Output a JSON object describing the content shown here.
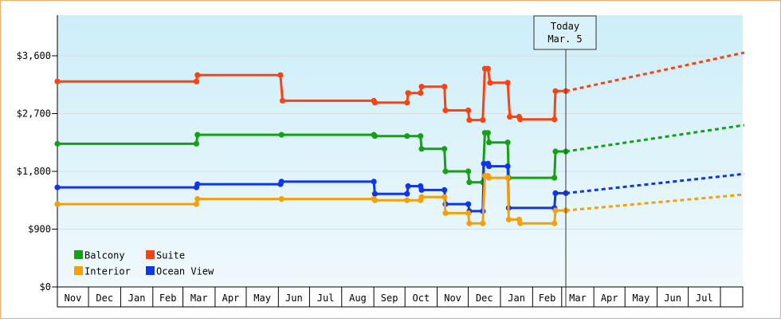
{
  "chart_data": {
    "type": "line",
    "title": "",
    "xlabel": "",
    "ylabel": "",
    "ylim": [
      0,
      3600
    ],
    "y_ticks": [
      {
        "value": 0,
        "label": "$0"
      },
      {
        "value": 900,
        "label": "$900"
      },
      {
        "value": 1800,
        "label": "$1,800"
      },
      {
        "value": 2700,
        "label": "$2,700"
      },
      {
        "value": 3600,
        "label": "$3,600"
      }
    ],
    "x_months": [
      "Nov",
      "Dec",
      "Jan",
      "Feb",
      "Mar",
      "Apr",
      "May",
      "Jun",
      "Jul",
      "Aug",
      "Sep",
      "Oct",
      "Nov",
      "Dec",
      "Jan",
      "Feb",
      "Mar",
      "Apr",
      "May",
      "Jun",
      "Jul"
    ],
    "x_range": [
      "2015-11-01",
      "2017-08-01"
    ],
    "background_gradient": [
      "#cdeef9",
      "#f0f9fc"
    ],
    "today_marker": {
      "line1": "Today",
      "line2": "Mar. 5",
      "date": "2017-03-05"
    },
    "legend": [
      {
        "label": "Balcony",
        "color": "#16a016"
      },
      {
        "label": "Suite",
        "color": "#ff4010"
      },
      {
        "label": "Interior",
        "color": "#f5a00a"
      },
      {
        "label": "Ocean View",
        "color": "#1035ee"
      }
    ],
    "series": [
      {
        "name": "Suite",
        "color": "#ff4010",
        "points": [
          [
            "2015-11-01",
            3200
          ],
          [
            "2016-03-14",
            3200
          ],
          [
            "2016-03-15",
            3300
          ],
          [
            "2016-06-03",
            3300
          ],
          [
            "2016-06-05",
            2900
          ],
          [
            "2016-09-01",
            2900
          ],
          [
            "2016-09-02",
            2870
          ],
          [
            "2016-10-03",
            2870
          ],
          [
            "2016-10-04",
            3020
          ],
          [
            "2016-10-16",
            3020
          ],
          [
            "2016-10-17",
            3120
          ],
          [
            "2016-11-08",
            3120
          ],
          [
            "2016-11-09",
            2750
          ],
          [
            "2016-12-01",
            2750
          ],
          [
            "2016-12-02",
            2600
          ],
          [
            "2016-12-15",
            2600
          ],
          [
            "2016-12-17",
            3400
          ],
          [
            "2016-12-20",
            3400
          ],
          [
            "2016-12-22",
            3180
          ],
          [
            "2017-01-08",
            3180
          ],
          [
            "2017-01-10",
            2650
          ],
          [
            "2017-01-19",
            2650
          ],
          [
            "2017-01-20",
            2610
          ],
          [
            "2017-02-22",
            2610
          ],
          [
            "2017-02-23",
            3050
          ],
          [
            "2017-03-05",
            3050
          ]
        ],
        "projection": [
          [
            "2017-03-05",
            3050
          ],
          [
            "2017-08-24",
            3650
          ]
        ]
      },
      {
        "name": "Balcony",
        "color": "#16a016",
        "points": [
          [
            "2015-11-01",
            2230
          ],
          [
            "2016-03-14",
            2230
          ],
          [
            "2016-03-15",
            2370
          ],
          [
            "2016-06-04",
            2370
          ],
          [
            "2016-09-01",
            2370
          ],
          [
            "2016-09-02",
            2350
          ],
          [
            "2016-10-03",
            2350
          ],
          [
            "2016-10-16",
            2350
          ],
          [
            "2016-10-17",
            2150
          ],
          [
            "2016-11-08",
            2150
          ],
          [
            "2016-11-09",
            1800
          ],
          [
            "2016-12-01",
            1800
          ],
          [
            "2016-12-02",
            1630
          ],
          [
            "2016-12-15",
            1630
          ],
          [
            "2016-12-17",
            2400
          ],
          [
            "2016-12-20",
            2400
          ],
          [
            "2016-12-21",
            2250
          ],
          [
            "2017-01-08",
            2250
          ],
          [
            "2017-01-09",
            1700
          ],
          [
            "2017-02-22",
            1700
          ],
          [
            "2017-02-23",
            2110
          ],
          [
            "2017-03-05",
            2110
          ]
        ],
        "projection": [
          [
            "2017-03-05",
            2110
          ],
          [
            "2017-08-24",
            2520
          ]
        ]
      },
      {
        "name": "Ocean View",
        "color": "#1035ee",
        "points": [
          [
            "2015-11-01",
            1550
          ],
          [
            "2016-03-14",
            1550
          ],
          [
            "2016-03-15",
            1600
          ],
          [
            "2016-06-03",
            1600
          ],
          [
            "2016-06-04",
            1640
          ],
          [
            "2016-09-01",
            1640
          ],
          [
            "2016-09-02",
            1450
          ],
          [
            "2016-10-03",
            1450
          ],
          [
            "2016-10-04",
            1570
          ],
          [
            "2016-10-16",
            1570
          ],
          [
            "2016-10-17",
            1510
          ],
          [
            "2016-11-08",
            1510
          ],
          [
            "2016-11-09",
            1290
          ],
          [
            "2016-12-01",
            1290
          ],
          [
            "2016-12-02",
            1180
          ],
          [
            "2016-12-15",
            1180
          ],
          [
            "2016-12-16",
            1920
          ],
          [
            "2016-12-20",
            1920
          ],
          [
            "2016-12-21",
            1880
          ],
          [
            "2017-01-08",
            1880
          ],
          [
            "2017-01-09",
            1230
          ],
          [
            "2017-02-22",
            1230
          ],
          [
            "2017-02-23",
            1460
          ],
          [
            "2017-03-05",
            1460
          ]
        ],
        "projection": [
          [
            "2017-03-05",
            1460
          ],
          [
            "2017-08-24",
            1760
          ]
        ]
      },
      {
        "name": "Interior",
        "color": "#f5a00a",
        "points": [
          [
            "2015-11-01",
            1290
          ],
          [
            "2016-03-14",
            1290
          ],
          [
            "2016-03-15",
            1370
          ],
          [
            "2016-06-04",
            1370
          ],
          [
            "2016-09-01",
            1370
          ],
          [
            "2016-09-02",
            1350
          ],
          [
            "2016-10-03",
            1350
          ],
          [
            "2016-10-16",
            1350
          ],
          [
            "2016-10-17",
            1400
          ],
          [
            "2016-11-08",
            1400
          ],
          [
            "2016-11-09",
            1150
          ],
          [
            "2016-12-01",
            1150
          ],
          [
            "2016-12-02",
            990
          ],
          [
            "2016-12-15",
            990
          ],
          [
            "2016-12-17",
            1730
          ],
          [
            "2016-12-20",
            1730
          ],
          [
            "2016-12-21",
            1700
          ],
          [
            "2017-01-08",
            1700
          ],
          [
            "2017-01-09",
            1050
          ],
          [
            "2017-01-19",
            1050
          ],
          [
            "2017-01-20",
            990
          ],
          [
            "2017-02-22",
            990
          ],
          [
            "2017-02-23",
            1190
          ],
          [
            "2017-03-05",
            1190
          ]
        ],
        "projection": [
          [
            "2017-03-05",
            1190
          ],
          [
            "2017-08-24",
            1440
          ]
        ]
      }
    ]
  }
}
